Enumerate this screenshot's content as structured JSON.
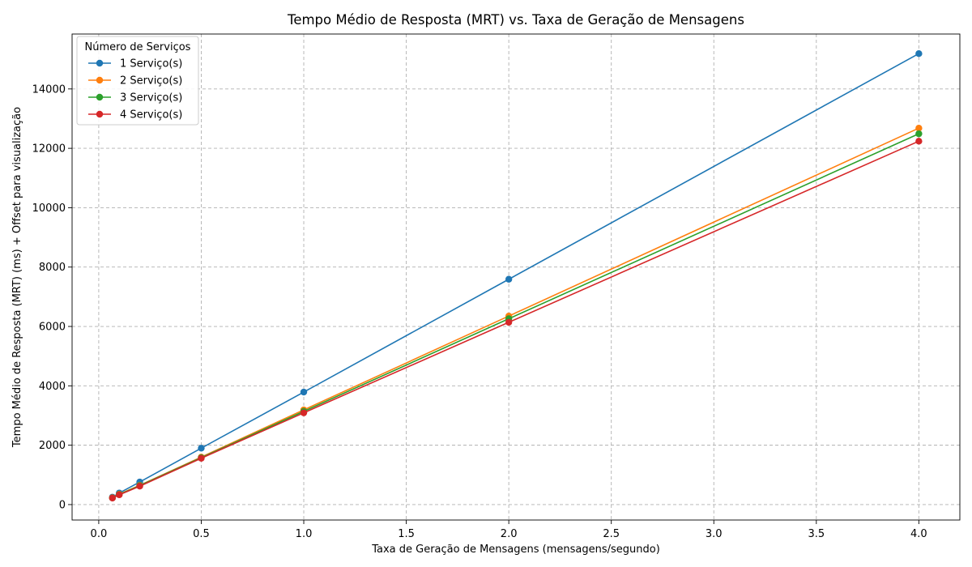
{
  "chart_data": {
    "type": "line",
    "title": "Tempo Médio de Resposta (MRT) vs. Taxa de Geração de Mensagens",
    "xlabel": "Taxa de Geração de Mensagens (mensagens/segundo)",
    "ylabel": "Tempo Médio de Resposta (MRT) (ms) + Offset para visualização",
    "xlim": [
      -0.13,
      4.2
    ],
    "ylim": [
      -520,
      15850
    ],
    "xticks": [
      0.0,
      0.5,
      1.0,
      1.5,
      2.0,
      2.5,
      3.0,
      3.5,
      4.0
    ],
    "xtick_labels": [
      "0.0",
      "0.5",
      "1.0",
      "1.5",
      "2.0",
      "2.5",
      "3.0",
      "3.5",
      "4.0"
    ],
    "yticks": [
      0,
      2000,
      4000,
      6000,
      8000,
      10000,
      12000,
      14000
    ],
    "ytick_labels": [
      "0",
      "2000",
      "4000",
      "6000",
      "8000",
      "10000",
      "12000",
      "14000"
    ],
    "grid": true,
    "legend": {
      "title": "Número de Serviços",
      "position": "top-left"
    },
    "x": [
      0.0667,
      0.1,
      0.2,
      0.5,
      1.0,
      2.0,
      4.0
    ],
    "series": [
      {
        "name": "1 Serviço(s)",
        "color": "#1f77b4",
        "values": [
          250,
          390,
          760,
          1900,
          3790,
          7590,
          15190
        ]
      },
      {
        "name": "2 Serviço(s)",
        "color": "#ff7f0e",
        "values": [
          230,
          350,
          650,
          1600,
          3190,
          6350,
          12680
        ]
      },
      {
        "name": "3 Serviço(s)",
        "color": "#2ca02c",
        "values": [
          225,
          340,
          640,
          1580,
          3140,
          6260,
          12490
        ]
      },
      {
        "name": "4 Serviço(s)",
        "color": "#d62728",
        "values": [
          220,
          330,
          620,
          1560,
          3090,
          6140,
          12240
        ]
      }
    ]
  }
}
